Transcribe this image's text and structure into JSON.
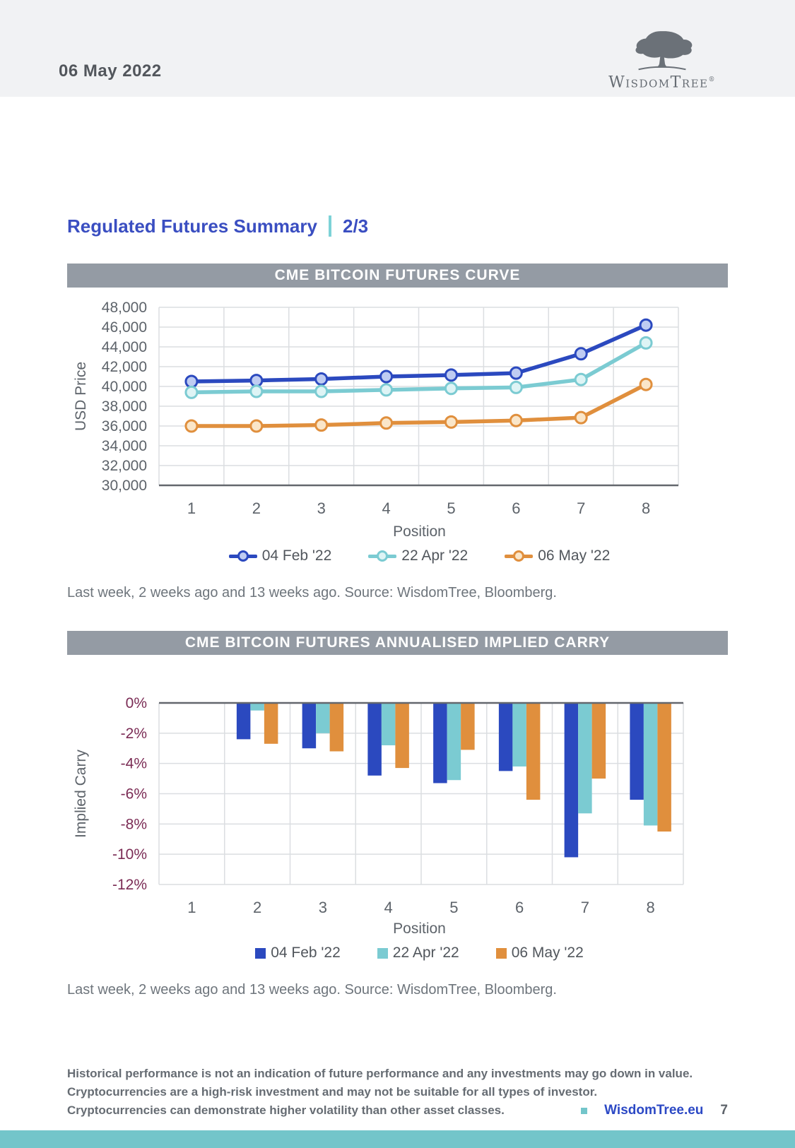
{
  "header": {
    "date": "06 May 2022",
    "logo_text": "WisdomTree",
    "logo_registered": "®"
  },
  "page_title": {
    "text": "Regulated Futures Summary",
    "page_fraction": "2/3"
  },
  "colors": {
    "accent_blue": "#2B49BF",
    "accent_teal": "#7BCBD2",
    "accent_orange": "#E08F3D",
    "title_bar_gray": "#949BA4",
    "heading_blue": "#3A4EC1",
    "separator_teal": "#7DD2D7",
    "footer_band_teal": "#73C5CA",
    "maroon_ticks": "#7B2C55"
  },
  "chart_data": [
    {
      "type": "line",
      "title": "CME BITCOIN FUTURES CURVE",
      "xlabel": "Position",
      "ylabel": "USD Price",
      "categories": [
        "1",
        "2",
        "3",
        "4",
        "5",
        "6",
        "7",
        "8"
      ],
      "ylim": [
        30000,
        48000
      ],
      "ytick_step": 2000,
      "grid": true,
      "legend_position": "bottom",
      "series": [
        {
          "name": "04 Feb '22",
          "color": "#2B49BF",
          "marker_fill": "#BFCCF2",
          "values": [
            40500,
            40600,
            40750,
            41000,
            41150,
            41350,
            43300,
            46200
          ]
        },
        {
          "name": "22 Apr '22",
          "color": "#7BCBD2",
          "marker_fill": "#DEF4F5",
          "values": [
            39400,
            39500,
            39500,
            39650,
            39800,
            39900,
            40700,
            44400
          ]
        },
        {
          "name": "06 May '22",
          "color": "#E08F3D",
          "marker_fill": "#FAE6C9",
          "values": [
            36000,
            36000,
            36100,
            36300,
            36400,
            36550,
            36850,
            40200
          ]
        }
      ],
      "source_note": "Last week, 2 weeks ago and 13 weeks ago. Source: WisdomTree, Bloomberg."
    },
    {
      "type": "bar",
      "title": "CME BITCOIN FUTURES ANNUALISED IMPLIED CARRY",
      "xlabel": "Position",
      "ylabel": "Implied Carry",
      "categories": [
        "1",
        "2",
        "3",
        "4",
        "5",
        "6",
        "7",
        "8"
      ],
      "ylim": [
        -12,
        0
      ],
      "ytick_step": 2,
      "ytick_suffix": "%",
      "grid": true,
      "legend_position": "bottom",
      "series": [
        {
          "name": "04 Feb '22",
          "color": "#2B49BF",
          "values": [
            0,
            -2.4,
            -3.0,
            -4.8,
            -5.3,
            -4.5,
            -10.2,
            -6.4
          ]
        },
        {
          "name": "22 Apr '22",
          "color": "#7BCBD2",
          "values": [
            0,
            -0.5,
            -2.0,
            -2.8,
            -5.1,
            -4.2,
            -7.3,
            -8.1
          ]
        },
        {
          "name": "06 May '22",
          "color": "#E08F3D",
          "values": [
            0,
            -2.7,
            -3.2,
            -4.3,
            -3.1,
            -6.4,
            -5.0,
            -8.5
          ]
        }
      ],
      "source_note": "Last week, 2 weeks ago and 13 weeks ago. Source: WisdomTree, Bloomberg."
    }
  ],
  "footer": {
    "disclaimer": [
      "Historical performance is not an indication of future performance and any investments may go down in value.",
      "Cryptocurrencies are a high-risk investment and may not be suitable for all types of investor.",
      "Cryptocurrencies can demonstrate higher volatility than other asset classes."
    ],
    "site": "WisdomTree.eu",
    "page_number": "7"
  }
}
